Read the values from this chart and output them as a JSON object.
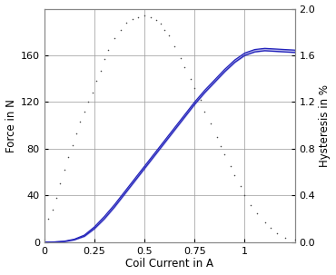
{
  "left_ylabel": "Force in N",
  "right_ylabel": "Hysteresis in %",
  "xlabel": "Coil Current in A",
  "ylim_left": [
    0,
    200
  ],
  "ylim_right": [
    0,
    2.0
  ],
  "xlim": [
    0,
    1.25
  ],
  "xticks": [
    0,
    0.25,
    0.5,
    0.75,
    1.0
  ],
  "yticks_left": [
    0,
    40,
    80,
    120,
    160
  ],
  "yticks_right": [
    0,
    0.4,
    0.8,
    1.2,
    1.6,
    2.0
  ],
  "grid_color": "#999999",
  "line_color": "#2222bb",
  "dot_color": "#444444",
  "bg_color": "#ffffff",
  "force_x": [
    0.0,
    0.05,
    0.1,
    0.15,
    0.2,
    0.25,
    0.3,
    0.35,
    0.4,
    0.45,
    0.5,
    0.55,
    0.6,
    0.65,
    0.7,
    0.75,
    0.8,
    0.85,
    0.9,
    0.95,
    1.0,
    1.05,
    1.1,
    1.15,
    1.2,
    1.25
  ],
  "force_y1": [
    0.0,
    0.2,
    0.8,
    2.5,
    6.0,
    13.0,
    22.0,
    32.0,
    43.0,
    54.0,
    65.0,
    76.0,
    87.0,
    98.0,
    109.0,
    120.0,
    130.0,
    139.0,
    148.0,
    156.0,
    162.0,
    165.0,
    166.0,
    165.5,
    165.0,
    164.5
  ],
  "force_y2": [
    0.0,
    0.1,
    0.5,
    2.0,
    5.0,
    11.5,
    20.0,
    30.0,
    41.0,
    52.0,
    63.0,
    74.0,
    85.0,
    96.0,
    107.0,
    118.0,
    128.0,
    137.0,
    146.0,
    154.0,
    160.0,
    163.0,
    164.0,
    163.5,
    163.0,
    162.5
  ],
  "hyst_x": [
    0.02,
    0.04,
    0.06,
    0.08,
    0.1,
    0.12,
    0.14,
    0.16,
    0.18,
    0.2,
    0.22,
    0.24,
    0.26,
    0.28,
    0.3,
    0.32,
    0.35,
    0.38,
    0.41,
    0.44,
    0.47,
    0.5,
    0.53,
    0.56,
    0.58,
    0.6,
    0.62,
    0.65,
    0.68,
    0.7,
    0.73,
    0.75,
    0.78,
    0.8,
    0.83,
    0.86,
    0.88,
    0.9,
    0.93,
    0.95,
    0.98,
    1.0,
    1.03,
    1.06,
    1.1,
    1.13,
    1.16,
    1.2,
    1.25
  ],
  "hyst_y": [
    0.2,
    0.28,
    0.38,
    0.5,
    0.62,
    0.73,
    0.83,
    0.93,
    1.03,
    1.12,
    1.2,
    1.28,
    1.38,
    1.47,
    1.57,
    1.65,
    1.75,
    1.82,
    1.88,
    1.91,
    1.93,
    1.94,
    1.93,
    1.9,
    1.87,
    1.82,
    1.77,
    1.68,
    1.58,
    1.5,
    1.4,
    1.32,
    1.22,
    1.12,
    1.02,
    0.9,
    0.82,
    0.75,
    0.65,
    0.57,
    0.48,
    0.4,
    0.32,
    0.25,
    0.17,
    0.12,
    0.08,
    0.04,
    0.02
  ]
}
